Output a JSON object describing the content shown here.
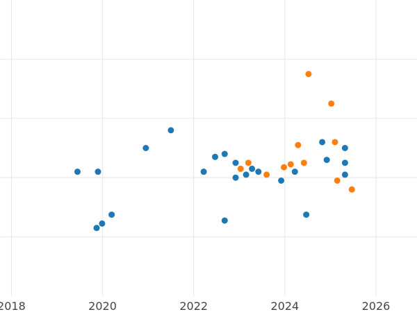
{
  "chart_data": {
    "type": "scatter",
    "title": "",
    "xlabel": "",
    "ylabel": "",
    "xlim": [
      2017.75,
      2026.9
    ],
    "ylim": [
      0,
      10
    ],
    "y_gridlines": [
      2.0,
      4.0,
      6.0,
      8.0
    ],
    "grid": true,
    "legend": "none",
    "x_ticks": [
      {
        "value": 2018,
        "label": "2018"
      },
      {
        "value": 2020,
        "label": "2020"
      },
      {
        "value": 2022,
        "label": "2022"
      },
      {
        "value": 2024,
        "label": "2024"
      },
      {
        "value": 2026,
        "label": "2026"
      }
    ],
    "series": [
      {
        "color": "#1f77b4",
        "points": [
          {
            "x": 2019.45,
            "y": 4.2
          },
          {
            "x": 2019.9,
            "y": 4.2
          },
          {
            "x": 2019.87,
            "y": 2.3
          },
          {
            "x": 2019.99,
            "y": 2.45
          },
          {
            "x": 2020.2,
            "y": 2.75
          },
          {
            "x": 2020.95,
            "y": 5.0
          },
          {
            "x": 2021.5,
            "y": 5.6
          },
          {
            "x": 2022.22,
            "y": 4.2
          },
          {
            "x": 2022.47,
            "y": 4.7
          },
          {
            "x": 2022.68,
            "y": 4.8
          },
          {
            "x": 2022.68,
            "y": 2.55
          },
          {
            "x": 2022.92,
            "y": 4.5
          },
          {
            "x": 2022.92,
            "y": 4.0
          },
          {
            "x": 2023.15,
            "y": 4.1
          },
          {
            "x": 2023.28,
            "y": 4.3
          },
          {
            "x": 2023.42,
            "y": 4.2
          },
          {
            "x": 2023.92,
            "y": 3.9
          },
          {
            "x": 2024.22,
            "y": 4.2
          },
          {
            "x": 2024.47,
            "y": 2.75
          },
          {
            "x": 2024.82,
            "y": 5.2
          },
          {
            "x": 2024.92,
            "y": 4.6
          },
          {
            "x": 2025.32,
            "y": 5.0
          },
          {
            "x": 2025.32,
            "y": 4.5
          },
          {
            "x": 2025.32,
            "y": 4.1
          }
        ]
      },
      {
        "color": "#ff7f0e",
        "points": [
          {
            "x": 2023.03,
            "y": 4.3
          },
          {
            "x": 2023.2,
            "y": 4.5
          },
          {
            "x": 2023.6,
            "y": 4.1
          },
          {
            "x": 2023.98,
            "y": 4.35
          },
          {
            "x": 2024.13,
            "y": 4.45
          },
          {
            "x": 2024.29,
            "y": 5.1
          },
          {
            "x": 2024.42,
            "y": 4.5
          },
          {
            "x": 2024.52,
            "y": 7.5
          },
          {
            "x": 2025.02,
            "y": 6.5
          },
          {
            "x": 2025.1,
            "y": 5.2
          },
          {
            "x": 2025.15,
            "y": 3.9
          },
          {
            "x": 2025.47,
            "y": 3.6
          }
        ]
      }
    ]
  }
}
